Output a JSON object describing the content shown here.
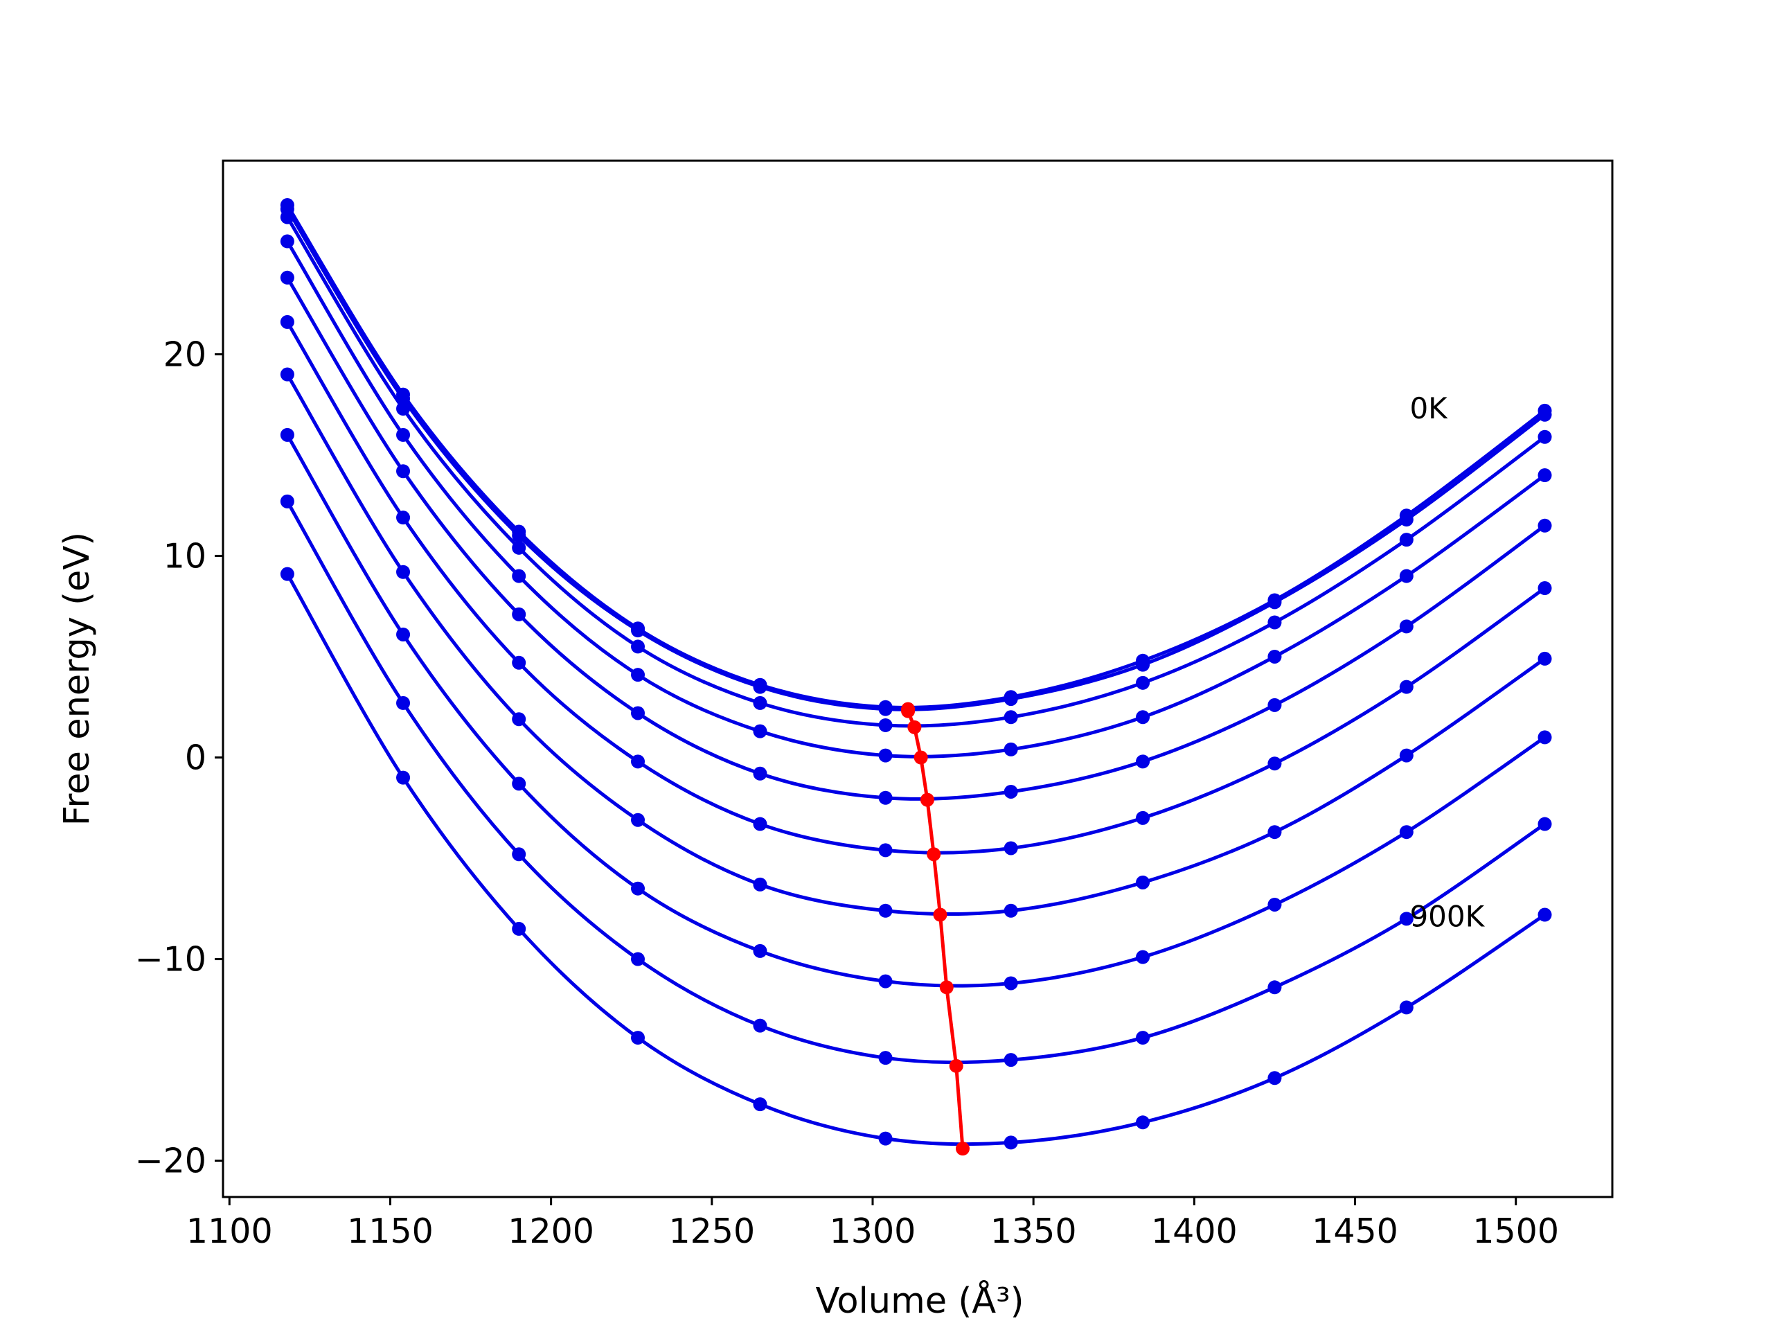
{
  "chart_data": {
    "type": "line",
    "xlabel": "Volume (Å³)",
    "ylabel": "Free energy (eV)",
    "xlim": [
      1098,
      1530
    ],
    "ylim": [
      -21.8,
      29.6
    ],
    "x_ticks": [
      "1100",
      "1150",
      "1200",
      "1250",
      "1300",
      "1350",
      "1400",
      "1450",
      "1500"
    ],
    "y_ticks": [
      "−20",
      "−10",
      "0",
      "10",
      "20"
    ],
    "grid": false,
    "legend": "none",
    "annotations": [
      {
        "text": "0K",
        "x": 1467,
        "y": 17.3
      },
      {
        "text": "900K",
        "x": 1467,
        "y": -7.9
      }
    ],
    "curve_color": "#0000e6",
    "minima_color": "#ff0000",
    "x": [
      1118,
      1154,
      1190,
      1227,
      1265,
      1304,
      1343,
      1384,
      1425,
      1466,
      1509
    ],
    "series": [
      {
        "values": [
          27.4,
          18.0,
          11.2,
          6.4,
          3.6,
          2.5,
          3.0,
          4.8,
          7.8,
          12.0,
          17.2
        ],
        "minimum": {
          "x": 1311,
          "y": 2.4
        }
      },
      {
        "values": [
          27.2,
          17.8,
          11.0,
          6.3,
          3.5,
          2.4,
          2.9,
          4.6,
          7.7,
          11.8,
          17.0
        ],
        "minimum": {
          "x": 1311,
          "y": 2.3
        }
      },
      {
        "values": [
          26.8,
          17.3,
          10.4,
          5.5,
          2.7,
          1.6,
          2.0,
          3.7,
          6.7,
          10.8,
          15.9
        ],
        "minimum": {
          "x": 1313,
          "y": 1.5
        }
      },
      {
        "values": [
          25.6,
          16.0,
          9.0,
          4.1,
          1.3,
          0.1,
          0.4,
          2.0,
          5.0,
          9.0,
          14.0
        ],
        "minimum": {
          "x": 1315,
          "y": 0.0
        }
      },
      {
        "values": [
          23.8,
          14.2,
          7.1,
          2.2,
          -0.8,
          -2.0,
          -1.7,
          -0.2,
          2.6,
          6.5,
          11.5
        ],
        "minimum": {
          "x": 1317,
          "y": -2.1
        }
      },
      {
        "values": [
          21.6,
          11.9,
          4.7,
          -0.2,
          -3.3,
          -4.6,
          -4.5,
          -3.0,
          -0.3,
          3.5,
          8.4
        ],
        "minimum": {
          "x": 1319,
          "y": -4.8
        }
      },
      {
        "values": [
          19.0,
          9.2,
          1.9,
          -3.1,
          -6.3,
          -7.6,
          -7.6,
          -6.2,
          -3.7,
          0.1,
          4.9
        ],
        "minimum": {
          "x": 1321,
          "y": -7.8
        }
      },
      {
        "values": [
          16.0,
          6.1,
          -1.3,
          -6.5,
          -9.6,
          -11.1,
          -11.2,
          -9.9,
          -7.3,
          -3.7,
          1.0
        ],
        "minimum": {
          "x": 1323,
          "y": -11.4
        }
      },
      {
        "values": [
          12.7,
          2.7,
          -4.8,
          -10.0,
          -13.3,
          -14.9,
          -15.0,
          -13.9,
          -11.4,
          -8.0,
          -3.3
        ],
        "minimum": {
          "x": 1326,
          "y": -15.3
        }
      },
      {
        "values": [
          9.1,
          -1.0,
          -8.5,
          -13.9,
          -17.2,
          -18.9,
          -19.1,
          -18.1,
          -15.9,
          -12.4,
          -7.8
        ],
        "minimum": {
          "x": 1328,
          "y": -19.4
        }
      }
    ]
  }
}
